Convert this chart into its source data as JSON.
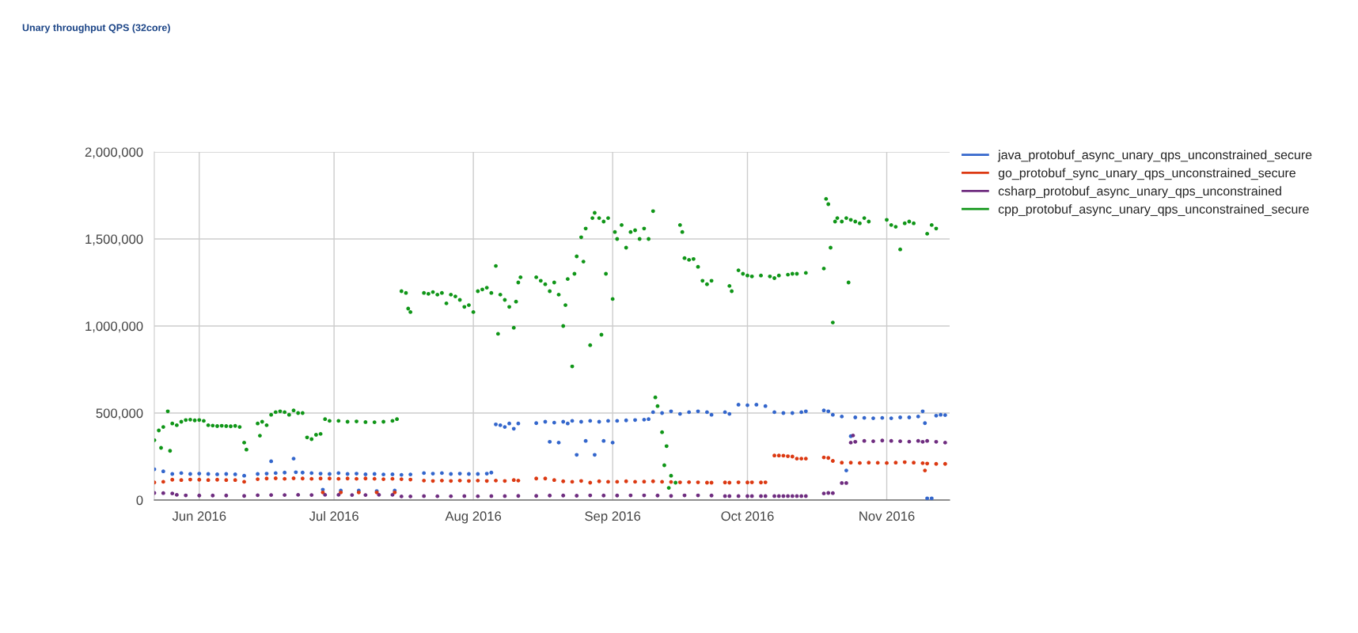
{
  "chart_data": {
    "type": "scatter",
    "title": "Unary throughput QPS (32core)",
    "xlim": [
      "2016-05-22",
      "2016-11-15"
    ],
    "xticks": [
      {
        "value": "2016-06-01",
        "label": "Jun 2016"
      },
      {
        "value": "2016-07-01",
        "label": "Jul 2016"
      },
      {
        "value": "2016-08-01",
        "label": "Aug 2016"
      },
      {
        "value": "2016-09-01",
        "label": "Sep 2016"
      },
      {
        "value": "2016-10-01",
        "label": "Oct 2016"
      },
      {
        "value": "2016-11-01",
        "label": "Nov 2016"
      }
    ],
    "ylim": [
      0,
      2000000
    ],
    "yticks": [
      {
        "value": 0,
        "label": "0"
      },
      {
        "value": 500000,
        "label": "500,000"
      },
      {
        "value": 1000000,
        "label": "1,000,000"
      },
      {
        "value": 1500000,
        "label": "1,500,000"
      },
      {
        "value": 2000000,
        "label": "2,000,000"
      }
    ],
    "grid": true,
    "legend": "right",
    "marker": "circle",
    "series": [
      {
        "name": "java_protobuf_async_unary_qps_unconstrained_secure",
        "color": "#3366cc",
        "x": [
          "2016-05-22",
          "2016-05-24",
          "2016-05-26",
          "2016-05-28",
          "2016-05-30",
          "2016-06-01",
          "2016-06-03",
          "2016-06-05",
          "2016-06-07",
          "2016-06-09",
          "2016-06-11",
          "2016-06-14",
          "2016-06-16",
          "2016-06-17",
          "2016-06-18",
          "2016-06-20",
          "2016-06-22",
          "2016-06-22T12:00",
          "2016-06-24",
          "2016-06-26",
          "2016-06-28",
          "2016-06-28T12:00",
          "2016-06-30",
          "2016-07-02",
          "2016-07-02T12:00",
          "2016-07-04",
          "2016-07-06",
          "2016-07-06T12:00",
          "2016-07-08",
          "2016-07-10",
          "2016-07-10T12:00",
          "2016-07-12",
          "2016-07-14",
          "2016-07-14T12:00",
          "2016-07-16",
          "2016-07-18",
          "2016-07-21",
          "2016-07-23",
          "2016-07-25",
          "2016-07-27",
          "2016-07-29",
          "2016-07-31",
          "2016-08-02",
          "2016-08-04",
          "2016-08-05",
          "2016-08-06",
          "2016-08-07",
          "2016-08-08",
          "2016-08-09",
          "2016-08-10",
          "2016-08-11",
          "2016-08-15",
          "2016-08-17",
          "2016-08-18",
          "2016-08-19",
          "2016-08-20",
          "2016-08-21",
          "2016-08-22",
          "2016-08-23",
          "2016-08-24",
          "2016-08-25",
          "2016-08-26",
          "2016-08-27",
          "2016-08-28",
          "2016-08-29",
          "2016-08-30",
          "2016-08-31",
          "2016-09-01",
          "2016-09-02",
          "2016-09-04",
          "2016-09-06",
          "2016-09-08",
          "2016-09-09",
          "2016-09-10",
          "2016-09-12",
          "2016-09-14",
          "2016-09-16",
          "2016-09-18",
          "2016-09-20",
          "2016-09-22",
          "2016-09-23",
          "2016-09-26",
          "2016-09-27",
          "2016-09-29",
          "2016-10-01",
          "2016-10-03",
          "2016-10-05",
          "2016-10-07",
          "2016-10-09",
          "2016-10-11",
          "2016-10-13",
          "2016-10-14",
          "2016-10-18",
          "2016-10-19",
          "2016-10-20",
          "2016-10-22",
          "2016-10-23",
          "2016-10-24",
          "2016-10-25",
          "2016-10-27",
          "2016-10-29",
          "2016-10-31",
          "2016-11-02",
          "2016-11-04",
          "2016-11-06",
          "2016-11-08",
          "2016-11-09",
          "2016-11-09T12:00",
          "2016-11-10",
          "2016-11-11",
          "2016-11-12",
          "2016-11-13",
          "2016-11-14"
        ],
        "values": [
          177000,
          165000,
          150000,
          155000,
          150000,
          152000,
          150000,
          148000,
          150000,
          148000,
          140000,
          150000,
          152000,
          223000,
          155000,
          158000,
          238000,
          160000,
          158000,
          155000,
          152000,
          60000,
          150000,
          155000,
          55000,
          150000,
          152000,
          55000,
          148000,
          150000,
          52000,
          147000,
          148000,
          55000,
          145000,
          147000,
          155000,
          152000,
          155000,
          150000,
          152000,
          150000,
          150000,
          152000,
          158000,
          435000,
          430000,
          420000,
          440000,
          410000,
          440000,
          442000,
          450000,
          335000,
          445000,
          330000,
          450000,
          440000,
          455000,
          260000,
          450000,
          340000,
          455000,
          260000,
          450000,
          340000,
          455000,
          330000,
          455000,
          458000,
          460000,
          462000,
          465000,
          505000,
          500000,
          510000,
          495000,
          505000,
          510000,
          505000,
          490000,
          505000,
          495000,
          548000,
          545000,
          548000,
          540000,
          505000,
          500000,
          500000,
          505000,
          510000,
          515000,
          510000,
          490000,
          480000,
          170000,
          367000,
          475000,
          472000,
          470000,
          472000,
          470000,
          475000,
          475000,
          480000,
          510000,
          442000,
          10000,
          10000,
          485000,
          490000,
          488000
        ]
      },
      {
        "name": "go_protobuf_sync_unary_qps_unconstrained_secure",
        "color": "#dc3912",
        "x": [
          "2016-05-22",
          "2016-05-24",
          "2016-05-26",
          "2016-05-28",
          "2016-05-30",
          "2016-06-01",
          "2016-06-03",
          "2016-06-05",
          "2016-06-07",
          "2016-06-09",
          "2016-06-11",
          "2016-06-14",
          "2016-06-16",
          "2016-06-18",
          "2016-06-20",
          "2016-06-22",
          "2016-06-24",
          "2016-06-26",
          "2016-06-28",
          "2016-06-28T12:00",
          "2016-06-30",
          "2016-07-02",
          "2016-07-02T12:00",
          "2016-07-04",
          "2016-07-06",
          "2016-07-06T12:00",
          "2016-07-08",
          "2016-07-10",
          "2016-07-10T12:00",
          "2016-07-12",
          "2016-07-14",
          "2016-07-14T12:00",
          "2016-07-16",
          "2016-07-18",
          "2016-07-21",
          "2016-07-23",
          "2016-07-25",
          "2016-07-27",
          "2016-07-29",
          "2016-07-31",
          "2016-08-02",
          "2016-08-04",
          "2016-08-06",
          "2016-08-08",
          "2016-08-10",
          "2016-08-11",
          "2016-08-15",
          "2016-08-17",
          "2016-08-19",
          "2016-08-21",
          "2016-08-23",
          "2016-08-25",
          "2016-08-27",
          "2016-08-29",
          "2016-08-31",
          "2016-09-02",
          "2016-09-04",
          "2016-09-06",
          "2016-09-08",
          "2016-09-10",
          "2016-09-12",
          "2016-09-14",
          "2016-09-16",
          "2016-09-18",
          "2016-09-20",
          "2016-09-22",
          "2016-09-23",
          "2016-09-26",
          "2016-09-27",
          "2016-09-29",
          "2016-10-01",
          "2016-10-02",
          "2016-10-04",
          "2016-10-05",
          "2016-10-07",
          "2016-10-08",
          "2016-10-09",
          "2016-10-10",
          "2016-10-11",
          "2016-10-12",
          "2016-10-13",
          "2016-10-14",
          "2016-10-18",
          "2016-10-19",
          "2016-10-20",
          "2016-10-22",
          "2016-10-24",
          "2016-10-26",
          "2016-10-28",
          "2016-10-30",
          "2016-11-01",
          "2016-11-03",
          "2016-11-05",
          "2016-11-07",
          "2016-11-09",
          "2016-11-09T12:00",
          "2016-11-10",
          "2016-11-12",
          "2016-11-14"
        ],
        "values": [
          101000,
          105000,
          117000,
          115000,
          118000,
          117000,
          115000,
          117000,
          115000,
          115000,
          105000,
          120000,
          124000,
          125000,
          122000,
          125000,
          124000,
          122000,
          124000,
          44000,
          124000,
          122000,
          44000,
          124000,
          122000,
          44000,
          124000,
          122000,
          44000,
          120000,
          122000,
          44000,
          120000,
          118000,
          112000,
          110000,
          112000,
          110000,
          112000,
          110000,
          112000,
          110000,
          112000,
          110000,
          115000,
          112000,
          124000,
          124000,
          115000,
          108000,
          105000,
          110000,
          100000,
          108000,
          105000,
          105000,
          108000,
          105000,
          106000,
          108000,
          105000,
          104000,
          102000,
          103000,
          102000,
          100000,
          100000,
          101000,
          100000,
          102000,
          101000,
          102000,
          101000,
          102000,
          256000,
          256000,
          255000,
          252000,
          250000,
          238000,
          238000,
          238000,
          245000,
          242000,
          225000,
          215000,
          215000,
          213000,
          215000,
          214000,
          213000,
          215000,
          218000,
          215000,
          212000,
          170000,
          210000,
          208000,
          208000
        ]
      },
      {
        "name": "csharp_protobuf_async_unary_qps_unconstrained",
        "color": "#6f2d80",
        "x": [
          "2016-05-22",
          "2016-05-24",
          "2016-05-26",
          "2016-05-27",
          "2016-05-29",
          "2016-06-01",
          "2016-06-04",
          "2016-06-07",
          "2016-06-11",
          "2016-06-14",
          "2016-06-17",
          "2016-06-20",
          "2016-06-23",
          "2016-06-26",
          "2016-06-29",
          "2016-07-02",
          "2016-07-05",
          "2016-07-08",
          "2016-07-11",
          "2016-07-14",
          "2016-07-16",
          "2016-07-18",
          "2016-07-21",
          "2016-07-24",
          "2016-07-27",
          "2016-07-30",
          "2016-08-02",
          "2016-08-05",
          "2016-08-08",
          "2016-08-11",
          "2016-08-15",
          "2016-08-18",
          "2016-08-21",
          "2016-08-24",
          "2016-08-27",
          "2016-08-30",
          "2016-09-02",
          "2016-09-05",
          "2016-09-08",
          "2016-09-11",
          "2016-09-14",
          "2016-09-17",
          "2016-09-20",
          "2016-09-23",
          "2016-09-26",
          "2016-09-27",
          "2016-09-29",
          "2016-10-01",
          "2016-10-02",
          "2016-10-04",
          "2016-10-05",
          "2016-10-07",
          "2016-10-08",
          "2016-10-09",
          "2016-10-10",
          "2016-10-11",
          "2016-10-12",
          "2016-10-13",
          "2016-10-14",
          "2016-10-18",
          "2016-10-19",
          "2016-10-20",
          "2016-10-22",
          "2016-10-23",
          "2016-10-24",
          "2016-10-24T12:00",
          "2016-10-25",
          "2016-10-27",
          "2016-10-29",
          "2016-10-31",
          "2016-11-02",
          "2016-11-04",
          "2016-11-06",
          "2016-11-08",
          "2016-11-09",
          "2016-11-10",
          "2016-11-12",
          "2016-11-14"
        ],
        "values": [
          41000,
          40000,
          38000,
          30000,
          27000,
          26000,
          26000,
          26000,
          24000,
          28000,
          29000,
          29000,
          30000,
          29000,
          30000,
          30000,
          29000,
          29000,
          30000,
          30000,
          21000,
          21000,
          23000,
          22000,
          22000,
          23000,
          22000,
          23000,
          23000,
          24000,
          24000,
          26000,
          26000,
          25000,
          27000,
          26000,
          26000,
          27000,
          27000,
          26000,
          24000,
          27000,
          27000,
          26000,
          23000,
          23000,
          23000,
          23000,
          23000,
          23000,
          23000,
          23000,
          23000,
          23000,
          23000,
          23000,
          23000,
          23000,
          23000,
          38000,
          41000,
          40000,
          98000,
          98000,
          330000,
          371000,
          335000,
          340000,
          338000,
          342000,
          340000,
          338000,
          336000,
          340000,
          335000,
          340000,
          335000,
          330000
        ]
      },
      {
        "name": "cpp_protobuf_async_unary_qps_unconstrained_secure",
        "color": "#109618",
        "x": [
          "2016-05-22",
          "2016-05-23",
          "2016-05-23T12:00",
          "2016-05-24",
          "2016-05-25",
          "2016-05-25T12:00",
          "2016-05-26",
          "2016-05-27",
          "2016-05-28",
          "2016-05-29",
          "2016-05-30",
          "2016-05-31",
          "2016-06-01",
          "2016-06-02",
          "2016-06-03",
          "2016-06-04",
          "2016-06-05",
          "2016-06-06",
          "2016-06-07",
          "2016-06-08",
          "2016-06-09",
          "2016-06-10",
          "2016-06-11",
          "2016-06-11T12:00",
          "2016-06-14",
          "2016-06-14T12:00",
          "2016-06-15",
          "2016-06-16",
          "2016-06-17",
          "2016-06-18",
          "2016-06-19",
          "2016-06-20",
          "2016-06-21",
          "2016-06-22",
          "2016-06-23",
          "2016-06-24",
          "2016-06-25",
          "2016-06-26",
          "2016-06-27",
          "2016-06-28",
          "2016-06-29",
          "2016-06-30",
          "2016-07-02",
          "2016-07-04",
          "2016-07-06",
          "2016-07-08",
          "2016-07-10",
          "2016-07-12",
          "2016-07-14",
          "2016-07-15",
          "2016-07-16",
          "2016-07-17",
          "2016-07-17T12:00",
          "2016-07-18",
          "2016-07-21",
          "2016-07-22",
          "2016-07-23",
          "2016-07-24",
          "2016-07-25",
          "2016-07-26",
          "2016-07-27",
          "2016-07-28",
          "2016-07-29",
          "2016-07-30",
          "2016-07-31",
          "2016-08-01",
          "2016-08-02",
          "2016-08-03",
          "2016-08-04",
          "2016-08-05",
          "2016-08-06",
          "2016-08-06T12:00",
          "2016-08-07",
          "2016-08-08",
          "2016-08-09",
          "2016-08-10",
          "2016-08-10T12:00",
          "2016-08-11",
          "2016-08-11T12:00",
          "2016-08-15",
          "2016-08-16",
          "2016-08-17",
          "2016-08-18",
          "2016-08-19",
          "2016-08-20",
          "2016-08-21",
          "2016-08-21T12:00",
          "2016-08-22",
          "2016-08-23",
          "2016-08-23T12:00",
          "2016-08-24",
          "2016-08-25",
          "2016-08-25T12:00",
          "2016-08-26",
          "2016-08-27",
          "2016-08-27T12:00",
          "2016-08-28",
          "2016-08-29",
          "2016-08-29T12:00",
          "2016-08-30",
          "2016-08-30T12:00",
          "2016-08-31",
          "2016-09-01",
          "2016-09-01T12:00",
          "2016-09-02",
          "2016-09-03",
          "2016-09-04",
          "2016-09-05",
          "2016-09-06",
          "2016-09-07",
          "2016-09-08",
          "2016-09-09",
          "2016-09-10",
          "2016-09-10T12:00",
          "2016-09-11",
          "2016-09-12",
          "2016-09-12T12:00",
          "2016-09-13",
          "2016-09-13T12:00",
          "2016-09-14",
          "2016-09-15",
          "2016-09-16",
          "2016-09-16T12:00",
          "2016-09-17",
          "2016-09-18",
          "2016-09-19",
          "2016-09-20",
          "2016-09-21",
          "2016-09-22",
          "2016-09-23",
          "2016-09-27",
          "2016-09-27T12:00",
          "2016-09-29",
          "2016-09-30",
          "2016-10-01",
          "2016-10-02",
          "2016-10-04",
          "2016-10-06",
          "2016-10-07",
          "2016-10-08",
          "2016-10-10",
          "2016-10-11",
          "2016-10-12",
          "2016-10-14",
          "2016-10-18",
          "2016-10-18T12:00",
          "2016-10-19",
          "2016-10-19T12:00",
          "2016-10-20",
          "2016-10-20T12:00",
          "2016-10-21",
          "2016-10-22",
          "2016-10-23",
          "2016-10-23T12:00",
          "2016-10-24",
          "2016-10-25",
          "2016-10-26",
          "2016-10-27",
          "2016-10-28",
          "2016-11-01",
          "2016-11-02",
          "2016-11-03",
          "2016-11-04",
          "2016-11-05",
          "2016-11-06",
          "2016-11-07",
          "2016-11-10",
          "2016-11-11",
          "2016-11-12"
        ],
        "values": [
          344000,
          400000,
          300000,
          420000,
          510000,
          283000,
          440000,
          430000,
          450000,
          460000,
          462000,
          458000,
          460000,
          455000,
          430000,
          428000,
          425000,
          427000,
          425000,
          424000,
          426000,
          420000,
          330000,
          290000,
          440000,
          370000,
          450000,
          430000,
          490000,
          505000,
          510000,
          505000,
          490000,
          515000,
          500000,
          500000,
          360000,
          350000,
          375000,
          380000,
          465000,
          455000,
          455000,
          450000,
          452000,
          448000,
          447000,
          450000,
          455000,
          465000,
          1200000,
          1190000,
          1100000,
          1080000,
          1190000,
          1185000,
          1195000,
          1180000,
          1190000,
          1130000,
          1180000,
          1170000,
          1150000,
          1110000,
          1120000,
          1080000,
          1200000,
          1210000,
          1220000,
          1190000,
          1345000,
          955000,
          1180000,
          1150000,
          1110000,
          990000,
          1140000,
          1250000,
          1280000,
          1280000,
          1260000,
          1240000,
          1200000,
          1250000,
          1180000,
          1000000,
          1120000,
          1270000,
          768000,
          1300000,
          1400000,
          1510000,
          1370000,
          1560000,
          890000,
          1620000,
          1650000,
          1620000,
          950000,
          1600000,
          1300000,
          1620000,
          1155000,
          1540000,
          1500000,
          1580000,
          1450000,
          1540000,
          1550000,
          1500000,
          1560000,
          1500000,
          1660000,
          590000,
          540000,
          390000,
          200000,
          310000,
          70000,
          140000,
          100000,
          1580000,
          1540000,
          1390000,
          1380000,
          1385000,
          1340000,
          1260000,
          1240000,
          1260000,
          1230000,
          1200000,
          1320000,
          1300000,
          1290000,
          1285000,
          1290000,
          1285000,
          1275000,
          1290000,
          1295000,
          1300000,
          1300000,
          1305000,
          1330000,
          1730000,
          1700000,
          1450000,
          1020000,
          1600000,
          1620000,
          1600000,
          1620000,
          1250000,
          1610000,
          1600000,
          1590000,
          1620000,
          1600000,
          1610000,
          1580000,
          1570000,
          1440000,
          1590000,
          1600000,
          1590000,
          1530000,
          1580000,
          1560000
        ]
      }
    ]
  }
}
